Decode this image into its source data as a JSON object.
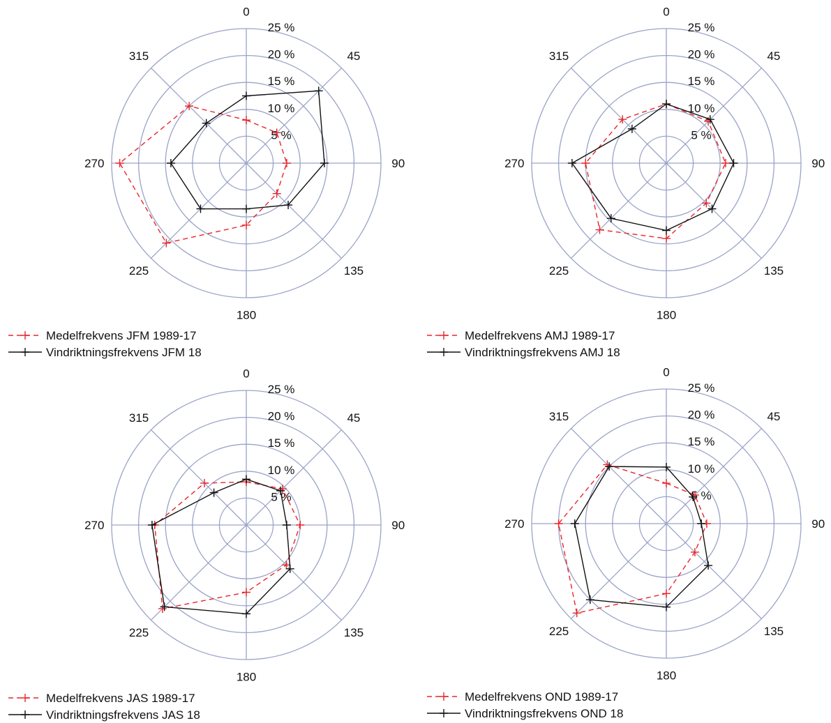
{
  "chart_data": [
    {
      "type": "radar",
      "radial_ticks": [
        "5 %",
        "10 %",
        "15 %",
        "20 %",
        "25 %"
      ],
      "radial_values": [
        5,
        10,
        15,
        20,
        25
      ],
      "rmax": 25,
      "angular_ticks": [
        "0",
        "45",
        "90",
        "135",
        "180",
        "225",
        "270",
        "315"
      ],
      "angles_deg": [
        0,
        45,
        90,
        135,
        180,
        225,
        270,
        315
      ],
      "grid": true,
      "legend_position": "bottom-left",
      "series": [
        {
          "name": "Medelfrekvens JFM 1989-17",
          "color": "#e8262a",
          "dash": true,
          "values": [
            8,
            8,
            7.5,
            8,
            11.5,
            21,
            23.5,
            15
          ]
        },
        {
          "name": "Vindriktningsfrekvens JFM 18",
          "color": "#111111",
          "dash": false,
          "values": [
            12.5,
            19,
            14.5,
            11,
            8.5,
            12,
            14,
            10.5
          ]
        }
      ]
    },
    {
      "type": "radar",
      "radial_ticks": [
        "5 %",
        "10 %",
        "15 %",
        "20 %",
        "25 %"
      ],
      "radial_values": [
        5,
        10,
        15,
        20,
        25
      ],
      "rmax": 25,
      "angular_ticks": [
        "0",
        "45",
        "90",
        "135",
        "180",
        "225",
        "270",
        "315"
      ],
      "angles_deg": [
        0,
        45,
        90,
        135,
        180,
        225,
        270,
        315
      ],
      "grid": true,
      "legend_position": "bottom-left",
      "series": [
        {
          "name": "Medelfrekvens AMJ 1989-17",
          "color": "#e8262a",
          "dash": true,
          "values": [
            11,
            11,
            11,
            10.5,
            14,
            17.5,
            15,
            11.5
          ]
        },
        {
          "name": "Vindriktningsfrekvens AMJ 18",
          "color": "#111111",
          "dash": false,
          "values": [
            11,
            11.5,
            12.5,
            12,
            12.5,
            14.5,
            17.5,
            9
          ]
        }
      ]
    },
    {
      "type": "radar",
      "radial_ticks": [
        "5 %",
        "10 %",
        "15 %",
        "20 %",
        "25 %"
      ],
      "radial_values": [
        5,
        10,
        15,
        20,
        25
      ],
      "rmax": 25,
      "angular_ticks": [
        "0",
        "45",
        "90",
        "135",
        "180",
        "225",
        "270",
        "315"
      ],
      "angles_deg": [
        0,
        45,
        90,
        135,
        180,
        225,
        270,
        315
      ],
      "grid": true,
      "legend_position": "bottom-left",
      "series": [
        {
          "name": "Medelfrekvens JAS 1989-17",
          "color": "#e8262a",
          "dash": true,
          "values": [
            8,
            9.5,
            10,
            10.5,
            12.5,
            22,
            17,
            11
          ]
        },
        {
          "name": "Vindriktningsfrekvens JAS 18",
          "color": "#111111",
          "dash": false,
          "values": [
            8.5,
            9.0,
            7.5,
            11.5,
            16.5,
            21.5,
            17.5,
            8.5
          ]
        }
      ]
    },
    {
      "type": "radar",
      "radial_ticks": [
        "5 %",
        "10 %",
        "15 %",
        "20 %",
        "25 %"
      ],
      "radial_values": [
        5,
        10,
        15,
        20,
        25
      ],
      "rmax": 25,
      "angular_ticks": [
        "0",
        "45",
        "90",
        "135",
        "180",
        "225",
        "270",
        "315"
      ],
      "angles_deg": [
        0,
        45,
        90,
        135,
        180,
        225,
        270,
        315
      ],
      "grid": true,
      "legend_position": "bottom-left",
      "series": [
        {
          "name": "Medelfrekvens OND 1989-17",
          "color": "#e8262a",
          "dash": true,
          "values": [
            7.5,
            7.5,
            7.5,
            7.5,
            13,
            23.5,
            20,
            15.5
          ]
        },
        {
          "name": "Vindriktningsfrekvens OND 18",
          "color": "#111111",
          "dash": false,
          "values": [
            10.5,
            7,
            6.5,
            11,
            15.5,
            20,
            17,
            15
          ]
        }
      ]
    }
  ]
}
